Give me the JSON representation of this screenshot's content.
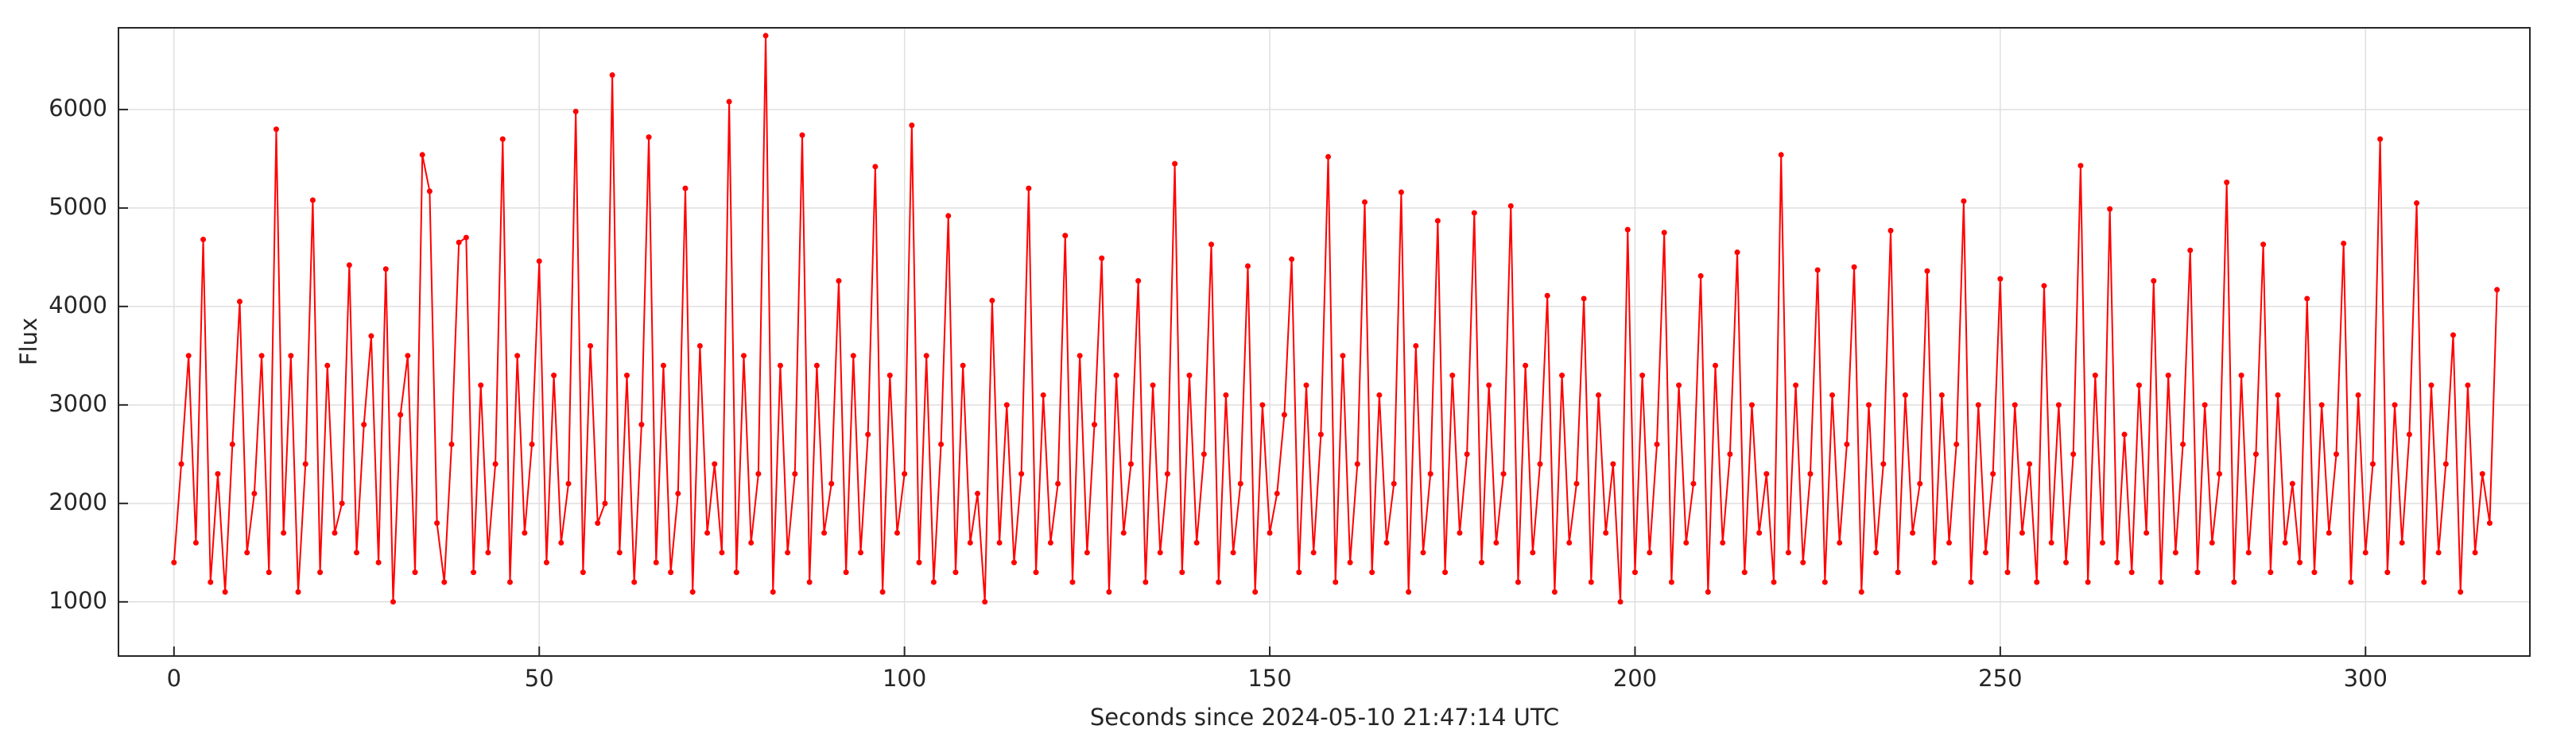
{
  "chart_data": {
    "type": "line",
    "x_label": "Seconds since 2024-05-10 21:47:14 UTC",
    "y_label": "Flux",
    "color": "#ff0000",
    "grid": true,
    "xlim": [
      -7.6,
      322.5
    ],
    "xticks": [
      0,
      50,
      100,
      150,
      200,
      250,
      300
    ],
    "ylim": [
      450,
      6830
    ],
    "yticks": [
      1000,
      2000,
      3000,
      4000,
      5000,
      6000
    ],
    "x": [
      0,
      1,
      2,
      3,
      4,
      5,
      6,
      7,
      8,
      9,
      10,
      11,
      12,
      13,
      14,
      15,
      16,
      17,
      18,
      19,
      20,
      21,
      22,
      23,
      24,
      25,
      26,
      27,
      28,
      29,
      30,
      31,
      32,
      33,
      34,
      35,
      36,
      37,
      38,
      39,
      40,
      41,
      42,
      43,
      44,
      45,
      46,
      47,
      48,
      49,
      50,
      51,
      52,
      53,
      54,
      55,
      56,
      57,
      58,
      59,
      60,
      61,
      62,
      63,
      64,
      65,
      66,
      67,
      68,
      69,
      70,
      71,
      72,
      73,
      74,
      75,
      76,
      77,
      78,
      79,
      80,
      81,
      82,
      83,
      84,
      85,
      86,
      87,
      88,
      89,
      90,
      91,
      92,
      93,
      94,
      95,
      96,
      97,
      98,
      99,
      100,
      101,
      102,
      103,
      104,
      105,
      106,
      107,
      108,
      109,
      110,
      111,
      112,
      113,
      114,
      115,
      116,
      117,
      118,
      119,
      120,
      121,
      122,
      123,
      124,
      125,
      126,
      127,
      128,
      129,
      130,
      131,
      132,
      133,
      134,
      135,
      136,
      137,
      138,
      139,
      140,
      141,
      142,
      143,
      144,
      145,
      146,
      147,
      148,
      149,
      150,
      151,
      152,
      153,
      154,
      155,
      156,
      157,
      158,
      159,
      160,
      161,
      162,
      163,
      164,
      165,
      166,
      167,
      168,
      169,
      170,
      171,
      172,
      173,
      174,
      175,
      176,
      177,
      178,
      179,
      180,
      181,
      182,
      183,
      184,
      185,
      186,
      187,
      188,
      189,
      190,
      191,
      192,
      193,
      194,
      195,
      196,
      197,
      198,
      199,
      200,
      201,
      202,
      203,
      204,
      205,
      206,
      207,
      208,
      209,
      210,
      211,
      212,
      213,
      214,
      215,
      216,
      217,
      218,
      219,
      220,
      221,
      222,
      223,
      224,
      225,
      226,
      227,
      228,
      229,
      230,
      231,
      232,
      233,
      234,
      235,
      236,
      237,
      238,
      239,
      240,
      241,
      242,
      243,
      244,
      245,
      246,
      247,
      248,
      249,
      250,
      251,
      252,
      253,
      254,
      255,
      256,
      257,
      258,
      259,
      260,
      261,
      262,
      263,
      264,
      265,
      266,
      267,
      268,
      269,
      270,
      271,
      272,
      273,
      274,
      275,
      276,
      277,
      278,
      279,
      280,
      281,
      282,
      283,
      284,
      285,
      286,
      287,
      288,
      289,
      290,
      291,
      292,
      293,
      294,
      295,
      296,
      297,
      298,
      299,
      300,
      301,
      302,
      303,
      304,
      305,
      306,
      307,
      308,
      309,
      310,
      311,
      312,
      313,
      314,
      315,
      316,
      317,
      318
    ],
    "values": [
      1400,
      2400,
      3500,
      1600,
      4680,
      1200,
      2300,
      1100,
      2600,
      4050,
      1500,
      2100,
      3500,
      1300,
      5800,
      1700,
      3500,
      1100,
      2400,
      5080,
      1300,
      3400,
      1700,
      2000,
      4420,
      1500,
      2800,
      3700,
      1400,
      4380,
      1000,
      2900,
      3500,
      1300,
      5540,
      5170,
      1800,
      1200,
      2600,
      4650,
      4700,
      1300,
      3200,
      1500,
      2400,
      5700,
      1200,
      3500,
      1700,
      2600,
      4460,
      1400,
      3300,
      1600,
      2200,
      5980,
      1300,
      3600,
      1800,
      2000,
      6350,
      1500,
      3300,
      1200,
      2800,
      5720,
      1400,
      3400,
      1300,
      2100,
      5200,
      1100,
      3600,
      1700,
      2400,
      1500,
      6080,
      1300,
      3500,
      1600,
      2300,
      6750,
      1100,
      3400,
      1500,
      2300,
      5740,
      1200,
      3400,
      1700,
      2200,
      4260,
      1300,
      3500,
      1500,
      2700,
      5420,
      1100,
      3300,
      1700,
      2300,
      5840,
      1400,
      3500,
      1200,
      2600,
      4920,
      1300,
      3400,
      1600,
      2100,
      1000,
      4060,
      1600,
      3000,
      1400,
      2300,
      5200,
      1300,
      3100,
      1600,
      2200,
      4720,
      1200,
      3500,
      1500,
      2800,
      4490,
      1100,
      3300,
      1700,
      2400,
      4260,
      1200,
      3200,
      1500,
      2300,
      5450,
      1300,
      3300,
      1600,
      2500,
      4630,
      1200,
      3100,
      1500,
      2200,
      4410,
      1100,
      3000,
      1700,
      2100,
      2900,
      4480,
      1300,
      3200,
      1500,
      2700,
      5520,
      1200,
      3500,
      1400,
      2400,
      5060,
      1300,
      3100,
      1600,
      2200,
      5160,
      1100,
      3600,
      1500,
      2300,
      4870,
      1300,
      3300,
      1700,
      2500,
      4950,
      1400,
      3200,
      1600,
      2300,
      5020,
      1200,
      3400,
      1500,
      2400,
      4110,
      1100,
      3300,
      1600,
      2200,
      4080,
      1200,
      3100,
      1700,
      2400,
      1000,
      4780,
      1300,
      3300,
      1500,
      2600,
      4750,
      1200,
      3200,
      1600,
      2200,
      4310,
      1100,
      3400,
      1600,
      2500,
      4550,
      1300,
      3000,
      1700,
      2300,
      1200,
      5540,
      1500,
      3200,
      1400,
      2300,
      4370,
      1200,
      3100,
      1600,
      2600,
      4400,
      1100,
      3000,
      1500,
      2400,
      4770,
      1300,
      3100,
      1700,
      2200,
      4360,
      1400,
      3100,
      1600,
      2600,
      5070,
      1200,
      3000,
      1500,
      2300,
      4280,
      1300,
      3000,
      1700,
      2400,
      1200,
      4210,
      1600,
      3000,
      1400,
      2500,
      5430,
      1200,
      3300,
      1600,
      4990,
      1400,
      2700,
      1300,
      3200,
      1700,
      4260,
      1200,
      3300,
      1500,
      2600,
      4570,
      1300,
      3000,
      1600,
      2300,
      5260,
      1200,
      3300,
      1500,
      2500,
      4630,
      1300,
      3100,
      1600,
      2200,
      1400,
      4080,
      1300,
      3000,
      1700,
      2500,
      4640,
      1200,
      3100,
      1500,
      2400,
      5700,
      1300,
      3000,
      1600,
      2700,
      5050,
      1200,
      3200,
      1500,
      2400,
      3710,
      1100,
      3200,
      1500,
      2300,
      1800,
      4170
    ]
  }
}
